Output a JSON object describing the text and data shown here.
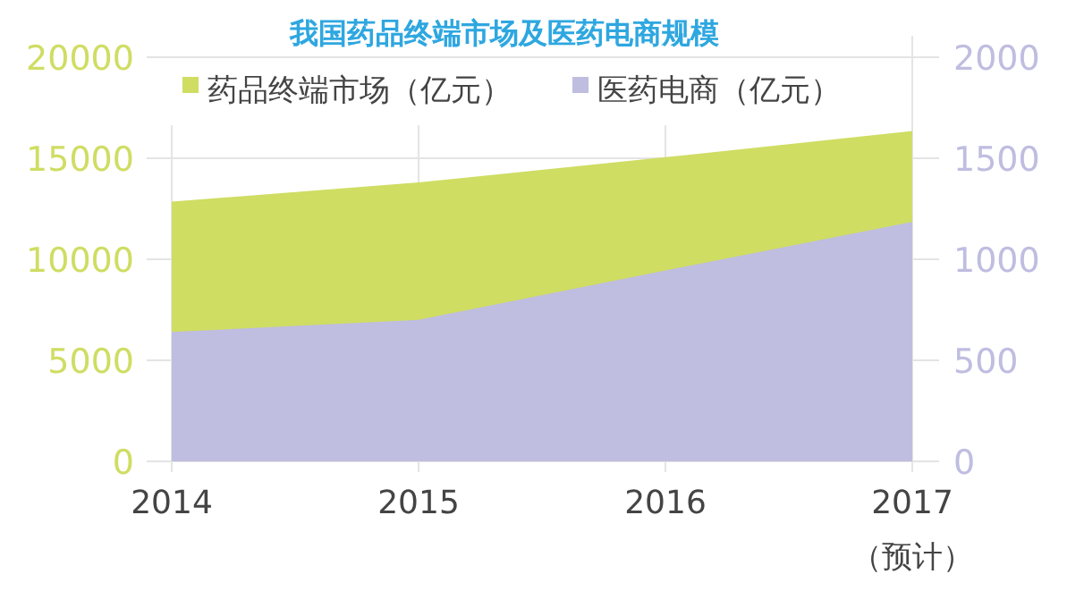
{
  "chart_data": {
    "type": "area",
    "title": "我国药品终端市场及医药电商规模",
    "categories": [
      "2014",
      "2015",
      "2016",
      "2017"
    ],
    "series": [
      {
        "name": "药品终端市场（亿元）",
        "color": "#cfdd63",
        "values": [
          12850,
          13800,
          15050,
          16350
        ]
      },
      {
        "name": "医药电商（亿元）",
        "color": "#bfbde0",
        "values": [
          640,
          700,
          945,
          1185
        ],
        "axis": "y2"
      }
    ],
    "ylim": [
      0,
      20000
    ],
    "yticks": [
      0,
      5000,
      10000,
      15000,
      20000
    ],
    "y2lim": [
      0,
      2000
    ],
    "y2ticks": [
      0,
      500,
      1000,
      1500,
      2000
    ],
    "grid": true,
    "legend": "top",
    "annotations": [
      "（预计）"
    ]
  }
}
